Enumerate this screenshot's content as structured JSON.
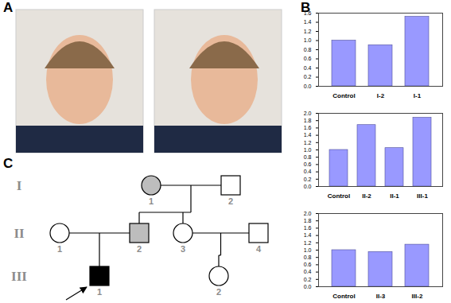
{
  "panel_labels": [
    "A",
    "B",
    "C"
  ],
  "chart_data": [
    {
      "type": "bar",
      "categories": [
        "Control",
        "I-2",
        "I-1"
      ],
      "values": [
        1.0,
        0.9,
        1.52
      ],
      "color": "#9999ff",
      "ylim": [
        0,
        1.6
      ],
      "yticks": [
        0,
        0.2,
        0.4,
        0.6,
        0.8,
        1,
        1.2,
        1.4,
        1.6
      ]
    },
    {
      "type": "bar",
      "categories": [
        "Control",
        "II-2",
        "II-1",
        "III-1"
      ],
      "values": [
        1.0,
        1.68,
        1.05,
        1.88
      ],
      "color": "#9999ff",
      "ylim": [
        0,
        2
      ],
      "yticks": [
        0,
        0.2,
        0.4,
        0.6,
        0.8,
        1,
        1.2,
        1.4,
        1.6,
        1.8,
        2
      ]
    },
    {
      "type": "bar",
      "categories": [
        "Control",
        "II-3",
        "III-2"
      ],
      "values": [
        1.0,
        0.95,
        1.15
      ],
      "color": "#9999ff",
      "ylim": [
        0,
        2
      ],
      "yticks": [
        0,
        0.2,
        0.4,
        0.6,
        0.8,
        1,
        1.2,
        1.4,
        1.6,
        1.8,
        2
      ]
    }
  ],
  "pedigree": {
    "generations": [
      {
        "label": "I",
        "members": [
          {
            "number": "1",
            "shape": "circle",
            "fill": "grey"
          },
          {
            "number": "2",
            "shape": "square",
            "fill": "white"
          }
        ]
      },
      {
        "label": "II",
        "members": [
          {
            "number": "1",
            "shape": "circle",
            "fill": "white"
          },
          {
            "number": "2",
            "shape": "square",
            "fill": "grey"
          },
          {
            "number": "3",
            "shape": "circle",
            "fill": "white"
          },
          {
            "number": "4",
            "shape": "square",
            "fill": "white"
          }
        ]
      },
      {
        "label": "III",
        "members": [
          {
            "number": "1",
            "shape": "square",
            "fill": "black"
          },
          {
            "number": "2",
            "shape": "circle",
            "fill": "white"
          }
        ]
      }
    ],
    "couples": [
      {
        "generation": 0,
        "partners": [
          0,
          1
        ],
        "children": [
          1,
          2
        ]
      },
      {
        "generation": 1,
        "partners": [
          0,
          1
        ],
        "children": [
          0
        ]
      },
      {
        "generation": 1,
        "partners": [
          2,
          3
        ],
        "children": [
          1
        ]
      }
    ],
    "proband": {
      "generation": 2,
      "member": 0
    }
  }
}
